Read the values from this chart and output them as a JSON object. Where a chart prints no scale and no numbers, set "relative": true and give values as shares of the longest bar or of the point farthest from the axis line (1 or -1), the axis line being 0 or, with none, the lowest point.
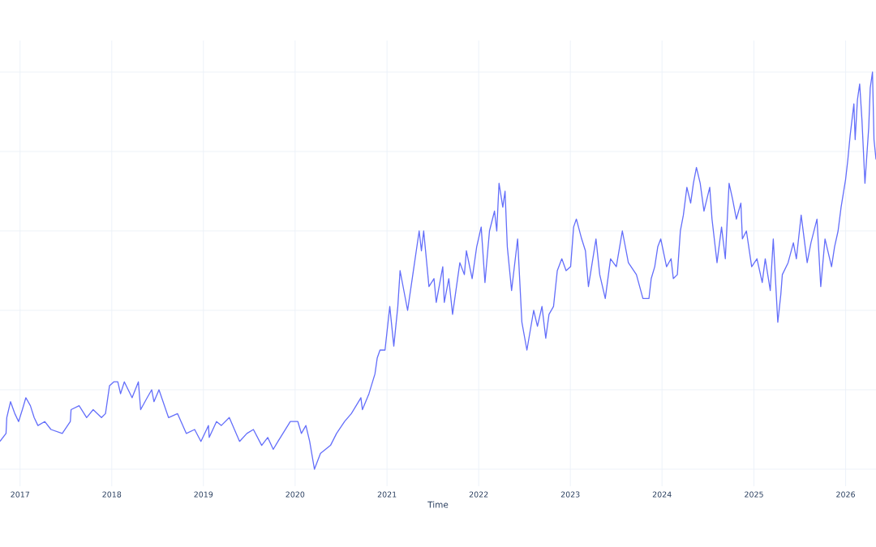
{
  "chart_data": {
    "type": "line",
    "xlabel": "Time",
    "relative": true,
    "grid": true,
    "tick_labels": "x",
    "xlim": [
      "2016-10-13",
      "2026-05-02"
    ],
    "xticks": [
      "2017",
      "2018",
      "2019",
      "2020",
      "2021",
      "2022",
      "2023",
      "2024",
      "2025",
      "2026"
    ],
    "x": [
      "2016-10-13",
      "2016-11-06",
      "2016-11-09",
      "2016-11-24",
      "2016-12-11",
      "2016-12-26",
      "2017-01-10",
      "2017-01-24",
      "2017-02-11",
      "2017-02-26",
      "2017-03-13",
      "2017-04-09",
      "2017-05-04",
      "2017-06-18",
      "2017-07-20",
      "2017-07-23",
      "2017-08-24",
      "2017-09-23",
      "2017-10-19",
      "2017-11-21",
      "2017-12-07",
      "2017-12-23",
      "2018-01-09",
      "2018-01-25",
      "2018-02-05",
      "2018-02-20",
      "2018-03-23",
      "2018-04-17",
      "2018-04-26",
      "2018-05-22",
      "2018-06-09",
      "2018-06-18",
      "2018-07-08",
      "2018-08-15",
      "2018-09-20",
      "2018-10-25",
      "2018-11-27",
      "2018-12-22",
      "2019-01-21",
      "2019-01-24",
      "2019-02-22",
      "2019-03-13",
      "2019-04-14",
      "2019-05-25",
      "2019-06-23",
      "2019-07-19",
      "2019-08-21",
      "2019-09-14",
      "2019-10-06",
      "2019-10-25",
      "2019-12-13",
      "2020-01-12",
      "2020-01-26",
      "2020-02-13",
      "2020-02-28",
      "2020-03-18",
      "2020-04-11",
      "2020-05-21",
      "2020-06-14",
      "2020-07-16",
      "2020-08-12",
      "2020-09-19",
      "2020-09-25",
      "2020-10-21",
      "2020-11-14",
      "2020-11-23",
      "2020-12-04",
      "2020-12-24",
      "2021-01-12",
      "2021-01-28",
      "2021-02-13",
      "2021-02-22",
      "2021-03-09",
      "2021-03-24",
      "2021-04-16",
      "2021-05-09",
      "2021-05-18",
      "2021-05-27",
      "2021-06-17",
      "2021-07-07",
      "2021-07-16",
      "2021-08-11",
      "2021-08-17",
      "2021-09-04",
      "2021-09-19",
      "2021-10-18",
      "2021-11-05",
      "2021-11-13",
      "2021-12-06",
      "2021-12-24",
      "2022-01-11",
      "2022-01-26",
      "2022-02-13",
      "2022-03-05",
      "2022-03-14",
      "2022-03-23",
      "2022-04-07",
      "2022-04-16",
      "2022-04-25",
      "2022-05-12",
      "2022-06-05",
      "2022-06-22",
      "2022-07-12",
      "2022-08-08",
      "2022-08-23",
      "2022-09-10",
      "2022-09-25",
      "2022-10-08",
      "2022-10-26",
      "2022-11-10",
      "2022-11-28",
      "2022-12-15",
      "2023-01-02",
      "2023-01-14",
      "2023-01-25",
      "2023-02-15",
      "2023-03-02",
      "2023-03-14",
      "2023-04-13",
      "2023-04-28",
      "2023-05-20",
      "2023-06-10",
      "2023-07-03",
      "2023-07-27",
      "2023-08-20",
      "2023-09-21",
      "2023-10-17",
      "2023-11-10",
      "2023-11-19",
      "2023-12-03",
      "2023-12-15",
      "2023-12-27",
      "2024-01-19",
      "2024-02-06",
      "2024-02-15",
      "2024-03-02",
      "2024-03-14",
      "2024-03-26",
      "2024-04-09",
      "2024-04-24",
      "2024-05-05",
      "2024-05-17",
      "2024-06-01",
      "2024-06-16",
      "2024-07-09",
      "2024-07-18",
      "2024-08-07",
      "2024-08-25",
      "2024-09-09",
      "2024-09-24",
      "2024-10-08",
      "2024-10-23",
      "2024-11-10",
      "2024-11-16",
      "2024-12-02",
      "2024-12-23",
      "2025-01-13",
      "2025-02-03",
      "2025-02-15",
      "2025-03-07",
      "2025-03-19",
      "2025-04-06",
      "2025-04-18",
      "2025-04-24",
      "2025-05-17",
      "2025-06-07",
      "2025-06-19",
      "2025-07-08",
      "2025-08-01",
      "2025-08-16",
      "2025-09-09",
      "2025-09-24",
      "2025-10-11",
      "2025-11-06",
      "2025-11-18",
      "2025-12-02",
      "2025-12-14",
      "2026-01-01",
      "2026-01-10",
      "2026-01-19",
      "2026-02-03",
      "2026-02-08",
      "2026-02-17",
      "2026-02-26",
      "2026-03-07",
      "2026-03-19",
      "2026-04-03",
      "2026-04-09",
      "2026-04-18",
      "2026-04-24",
      "2026-05-02"
    ],
    "series": [
      {
        "color": "#636efa",
        "values": [
          0.07,
          0.09,
          0.13,
          0.17,
          0.14,
          0.12,
          0.15,
          0.18,
          0.16,
          0.13,
          0.11,
          0.12,
          0.1,
          0.09,
          0.12,
          0.15,
          0.16,
          0.13,
          0.15,
          0.13,
          0.14,
          0.21,
          0.22,
          0.22,
          0.19,
          0.22,
          0.18,
          0.22,
          0.15,
          0.18,
          0.2,
          0.17,
          0.2,
          0.13,
          0.14,
          0.09,
          0.1,
          0.07,
          0.11,
          0.08,
          0.12,
          0.11,
          0.13,
          0.07,
          0.09,
          0.1,
          0.06,
          0.08,
          0.05,
          0.07,
          0.12,
          0.12,
          0.09,
          0.11,
          0.07,
          0,
          0.04,
          0.06,
          0.09,
          0.12,
          0.14,
          0.18,
          0.15,
          0.19,
          0.24,
          0.28,
          0.3,
          0.3,
          0.41,
          0.31,
          0.41,
          0.5,
          0.45,
          0.4,
          0.5,
          0.6,
          0.55,
          0.6,
          0.46,
          0.48,
          0.42,
          0.51,
          0.42,
          0.48,
          0.39,
          0.52,
          0.49,
          0.55,
          0.48,
          0.56,
          0.61,
          0.47,
          0.6,
          0.65,
          0.6,
          0.72,
          0.66,
          0.7,
          0.56,
          0.45,
          0.58,
          0.37,
          0.3,
          0.4,
          0.36,
          0.41,
          0.33,
          0.39,
          0.41,
          0.5,
          0.53,
          0.5,
          0.51,
          0.61,
          0.63,
          0.58,
          0.55,
          0.46,
          0.58,
          0.49,
          0.43,
          0.53,
          0.51,
          0.6,
          0.52,
          0.49,
          0.43,
          0.43,
          0.48,
          0.51,
          0.56,
          0.58,
          0.51,
          0.53,
          0.48,
          0.49,
          0.6,
          0.64,
          0.71,
          0.67,
          0.72,
          0.76,
          0.72,
          0.65,
          0.71,
          0.63,
          0.52,
          0.61,
          0.53,
          0.72,
          0.68,
          0.63,
          0.67,
          0.58,
          0.6,
          0.51,
          0.53,
          0.47,
          0.53,
          0.45,
          0.58,
          0.37,
          0.44,
          0.49,
          0.52,
          0.57,
          0.53,
          0.64,
          0.52,
          0.57,
          0.63,
          0.46,
          0.58,
          0.51,
          0.56,
          0.6,
          0.66,
          0.73,
          0.78,
          0.84,
          0.92,
          0.83,
          0.93,
          0.97,
          0.88,
          0.72,
          0.86,
          0.96,
          1,
          0.83,
          0.78
        ]
      }
    ]
  }
}
